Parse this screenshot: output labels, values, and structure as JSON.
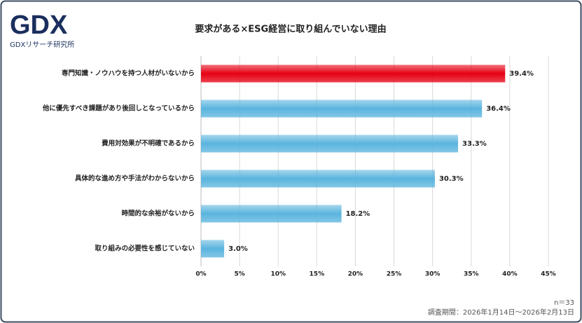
{
  "chart_data": {
    "type": "bar",
    "orientation": "horizontal",
    "title": "要求がある×ESG経営に取り組んでいない理由",
    "logo": "GDX",
    "logo_subtitle": "GDXリサーチ研究所",
    "sample_note": "n＝33",
    "period_note": "調査期間：2026年1月14日～2026年2月13日",
    "categories": [
      "専門知識・ノウハウを持つ人材がいないから",
      "他に優先すべき課題があり後回しとなっているから",
      "費用対効果が不明確であるから",
      "具体的な進め方や手法がわからないから",
      "時間的な余裕がないから",
      "取り組みの必要性を感じていない"
    ],
    "values": [
      39.4,
      36.4,
      33.3,
      30.3,
      18.2,
      3.0
    ],
    "value_labels": [
      "39.4%",
      "36.4%",
      "33.3%",
      "30.3%",
      "18.2%",
      "3.0%"
    ],
    "colors": [
      "#e60012",
      "#5ab4de",
      "#5ab4de",
      "#5ab4de",
      "#5ab4de",
      "#5ab4de"
    ],
    "xlim": [
      0,
      45
    ],
    "xticks": [
      {
        "value": 0,
        "label": "0%"
      },
      {
        "value": 5,
        "label": "5%"
      },
      {
        "value": 10,
        "label": "10%"
      },
      {
        "value": 15,
        "label": "15%"
      },
      {
        "value": 20,
        "label": "20%"
      },
      {
        "value": 25,
        "label": "25%"
      },
      {
        "value": 30,
        "label": "30%"
      },
      {
        "value": 35,
        "label": "35%"
      },
      {
        "value": 40,
        "label": "40%"
      },
      {
        "value": 45,
        "label": "45%"
      }
    ],
    "grid": true
  }
}
